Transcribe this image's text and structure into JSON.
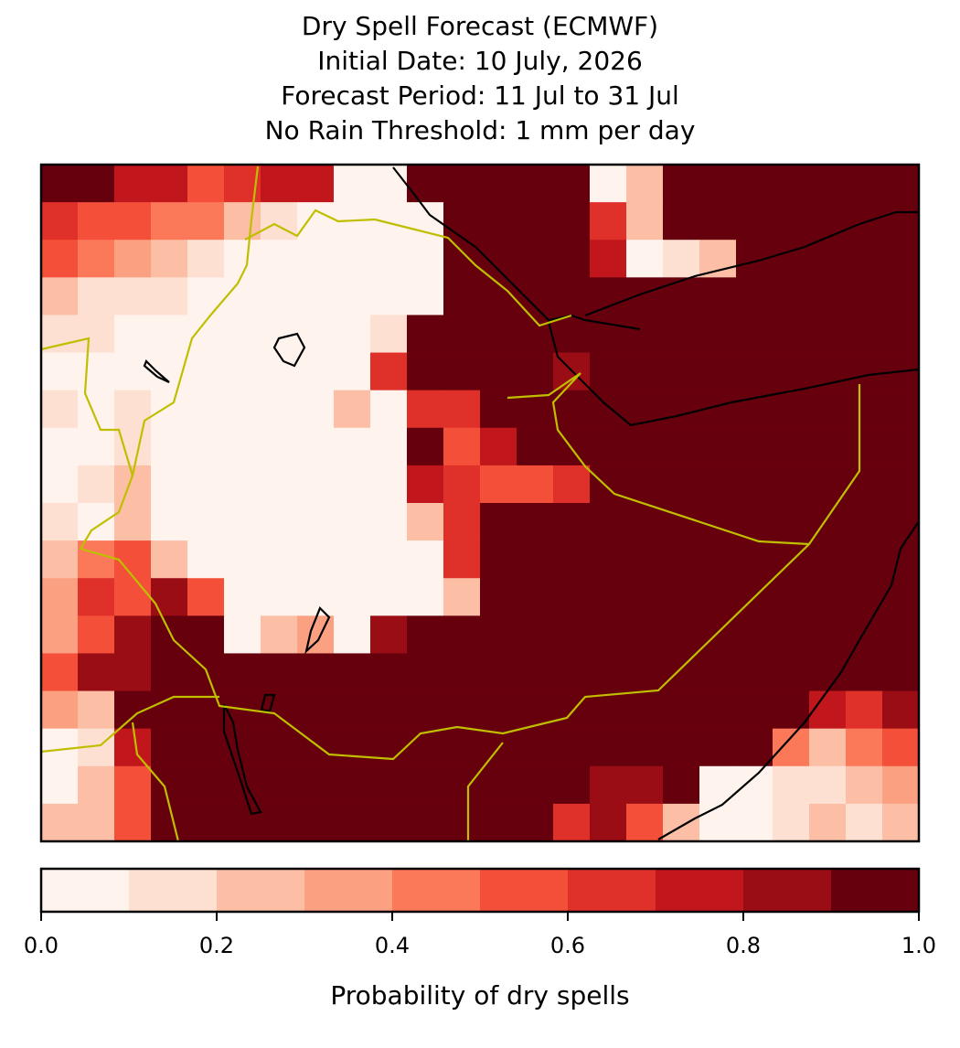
{
  "chart_data": {
    "type": "grid-map",
    "title": [
      "Dry Spell Forecast (ECMWF)",
      "Initial Date: 10 July, 2026",
      "Forecast Period: 11 Jul to 31 Jul",
      "No Rain Threshold: 1 mm per day"
    ],
    "colorbar": {
      "label": "Probability of dry spells",
      "bounds": [
        0,
        0.1,
        0.2,
        0.3,
        0.4,
        0.5,
        0.6,
        0.7,
        0.8,
        0.9,
        1
      ],
      "colors": [
        "#fff3ee",
        "#fee0d3",
        "#fcbea5",
        "#fca082",
        "#fb7858",
        "#f44f39",
        "#e0302a",
        "#c1161b",
        "#9b0d14",
        "#67000d"
      ],
      "ticks": [
        {
          "value": 0,
          "label": "0.0"
        },
        0.2,
        0.4,
        0.6,
        0.8,
        {
          "value": 1,
          "label": "1.0"
        }
      ]
    },
    "grid": [
      [
        0.95,
        0.95,
        0.75,
        0.75,
        0.55,
        0.65,
        0.75,
        0.75,
        0.05,
        0.05,
        0.95,
        0.95,
        0.95,
        0.95,
        0.95,
        0.05,
        0.25,
        0.95,
        0.95,
        0.95,
        0.95,
        0.95,
        0.95,
        0.95
      ],
      [
        0.65,
        0.55,
        0.55,
        0.45,
        0.45,
        0.25,
        0.15,
        0.05,
        0.05,
        0.05,
        0.05,
        0.95,
        0.95,
        0.95,
        0.95,
        0.65,
        0.25,
        0.95,
        0.95,
        0.95,
        0.95,
        0.95,
        0.95,
        0.95
      ],
      [
        0.55,
        0.45,
        0.35,
        0.25,
        0.15,
        0.05,
        0.05,
        0.05,
        0.05,
        0.05,
        0.05,
        0.95,
        0.95,
        0.95,
        0.95,
        0.75,
        0.05,
        0.15,
        0.25,
        0.95,
        0.95,
        0.95,
        0.95,
        0.95
      ],
      [
        0.25,
        0.15,
        0.15,
        0.15,
        0.05,
        0.05,
        0.05,
        0.05,
        0.05,
        0.05,
        0.05,
        0.95,
        0.95,
        0.95,
        0.95,
        0.95,
        0.95,
        0.95,
        0.95,
        0.95,
        0.95,
        0.95,
        0.95,
        0.95
      ],
      [
        0.15,
        0.15,
        0.05,
        0.05,
        0.05,
        0.05,
        0.05,
        0.05,
        0.05,
        0.15,
        0.95,
        0.95,
        0.95,
        0.95,
        0.95,
        0.95,
        0.95,
        0.95,
        0.95,
        0.95,
        0.95,
        0.95,
        0.95,
        0.95
      ],
      [
        0.05,
        0.05,
        0.05,
        0.05,
        0.05,
        0.05,
        0.05,
        0.05,
        0.05,
        0.65,
        0.95,
        0.95,
        0.95,
        0.95,
        0.85,
        0.95,
        0.95,
        0.95,
        0.95,
        0.95,
        0.95,
        0.95,
        0.95,
        0.95
      ],
      [
        0.15,
        0.05,
        0.15,
        0.05,
        0.05,
        0.05,
        0.05,
        0.05,
        0.25,
        0.05,
        0.65,
        0.65,
        0.95,
        0.95,
        0.95,
        0.95,
        0.95,
        0.95,
        0.95,
        0.95,
        0.95,
        0.95,
        0.95,
        0.95
      ],
      [
        0.05,
        0.05,
        0.15,
        0.05,
        0.05,
        0.05,
        0.05,
        0.05,
        0.05,
        0.05,
        0.95,
        0.55,
        0.75,
        0.95,
        0.95,
        0.95,
        0.95,
        0.95,
        0.95,
        0.95,
        0.95,
        0.95,
        0.95,
        0.95
      ],
      [
        0.05,
        0.15,
        0.25,
        0.05,
        0.05,
        0.05,
        0.05,
        0.05,
        0.05,
        0.05,
        0.75,
        0.65,
        0.55,
        0.55,
        0.65,
        0.95,
        0.95,
        0.95,
        0.95,
        0.95,
        0.95,
        0.95,
        0.95,
        0.95
      ],
      [
        0.15,
        0.05,
        0.25,
        0.05,
        0.05,
        0.05,
        0.05,
        0.05,
        0.05,
        0.05,
        0.25,
        0.65,
        0.95,
        0.95,
        0.95,
        0.95,
        0.95,
        0.95,
        0.95,
        0.95,
        0.95,
        0.95,
        0.95,
        0.95
      ],
      [
        0.25,
        0.45,
        0.55,
        0.25,
        0.05,
        0.05,
        0.05,
        0.05,
        0.05,
        0.05,
        0.05,
        0.65,
        0.95,
        0.95,
        0.95,
        0.95,
        0.95,
        0.95,
        0.95,
        0.95,
        0.95,
        0.95,
        0.95,
        0.95
      ],
      [
        0.35,
        0.65,
        0.55,
        0.85,
        0.55,
        0.05,
        0.05,
        0.05,
        0.05,
        0.05,
        0.05,
        0.25,
        0.95,
        0.95,
        0.95,
        0.95,
        0.95,
        0.95,
        0.95,
        0.95,
        0.95,
        0.95,
        0.95,
        0.95
      ],
      [
        0.35,
        0.55,
        0.85,
        0.95,
        0.95,
        0.05,
        0.25,
        0.35,
        0.05,
        0.85,
        0.95,
        0.95,
        0.95,
        0.95,
        0.95,
        0.95,
        0.95,
        0.95,
        0.95,
        0.95,
        0.95,
        0.95,
        0.95,
        0.95
      ],
      [
        0.55,
        0.85,
        0.85,
        0.95,
        0.95,
        0.95,
        0.95,
        0.95,
        0.95,
        0.95,
        0.95,
        0.95,
        0.95,
        0.95,
        0.95,
        0.95,
        0.95,
        0.95,
        0.95,
        0.95,
        0.95,
        0.95,
        0.95,
        0.95
      ],
      [
        0.35,
        0.25,
        0.95,
        0.95,
        0.95,
        0.95,
        0.95,
        0.95,
        0.95,
        0.95,
        0.95,
        0.95,
        0.95,
        0.95,
        0.95,
        0.95,
        0.95,
        0.95,
        0.95,
        0.95,
        0.95,
        0.75,
        0.65,
        0.85
      ],
      [
        0.05,
        0.15,
        0.75,
        0.95,
        0.95,
        0.95,
        0.95,
        0.95,
        0.95,
        0.95,
        0.95,
        0.95,
        0.95,
        0.95,
        0.95,
        0.95,
        0.95,
        0.95,
        0.95,
        0.95,
        0.45,
        0.25,
        0.45,
        0.55
      ],
      [
        0.05,
        0.25,
        0.55,
        0.95,
        0.95,
        0.95,
        0.95,
        0.95,
        0.95,
        0.95,
        0.95,
        0.95,
        0.95,
        0.95,
        0.95,
        0.85,
        0.85,
        0.95,
        0.05,
        0.05,
        0.15,
        0.15,
        0.25,
        0.35
      ],
      [
        0.25,
        0.25,
        0.55,
        0.95,
        0.95,
        0.95,
        0.95,
        0.95,
        0.95,
        0.95,
        0.95,
        0.95,
        0.95,
        0.95,
        0.65,
        0.85,
        0.55,
        0.25,
        0.05,
        0.05,
        0.15,
        0.25,
        0.15,
        0.25
      ]
    ]
  }
}
